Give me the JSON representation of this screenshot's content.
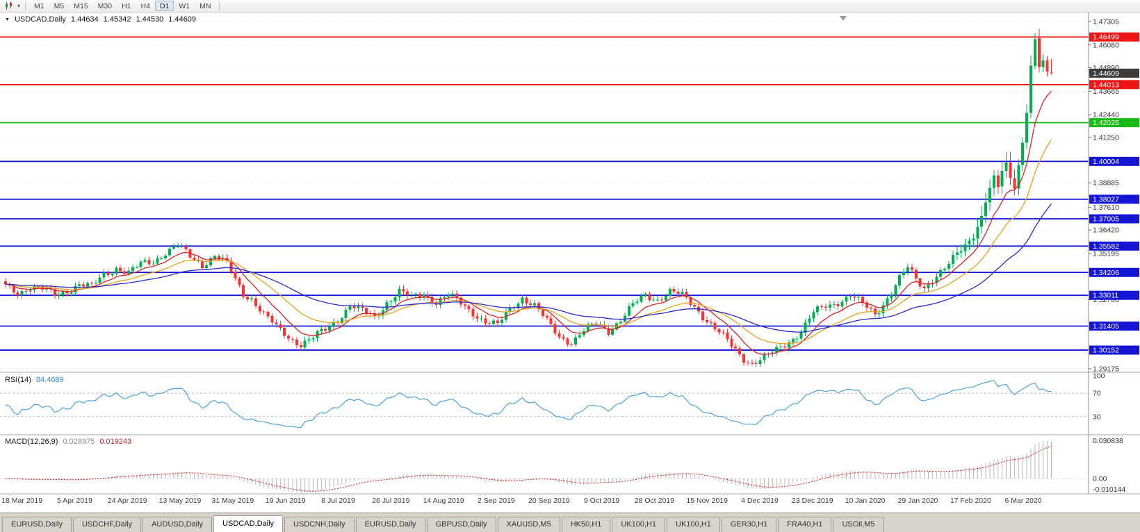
{
  "app": {
    "title": "MetaTrader"
  },
  "toolbar": {
    "timeframes": [
      {
        "label": "M1",
        "active": false
      },
      {
        "label": "M5",
        "active": false
      },
      {
        "label": "M15",
        "active": false
      },
      {
        "label": "M30",
        "active": false
      },
      {
        "label": "H1",
        "active": false
      },
      {
        "label": "H4",
        "active": false
      },
      {
        "label": "D1",
        "active": true
      },
      {
        "label": "W1",
        "active": false
      },
      {
        "label": "MN",
        "active": false
      }
    ]
  },
  "chart_header": {
    "collapse_arrow": "▼",
    "symbol_period": "USDCAD,Daily",
    "open": "1.44634",
    "high": "1.45342",
    "low": "1.44530",
    "close": "1.44609"
  },
  "indicators": {
    "rsi": {
      "title": "RSI(14)",
      "value": "84.4689",
      "levels": [
        70,
        30
      ],
      "axis_labels": [
        {
          "text": "100",
          "value": 100
        },
        {
          "text": "70",
          "value": 70
        },
        {
          "text": "30",
          "value": 30
        }
      ]
    },
    "macd": {
      "title": "MACD(12,26,9)",
      "main_value": "0.028975",
      "signal_value": "0.019243",
      "axis_top": "0.030838",
      "axis_zero": "0.00",
      "axis_bottom": "-0.010144"
    }
  },
  "price_axis": {
    "ticks": [
      "1.47305",
      "1.46080",
      "1.44890",
      "1.43665",
      "1.42440",
      "1.41250",
      "1.40055",
      "1.38885",
      "1.37610",
      "1.36420",
      "1.35195",
      "1.34013",
      "1.32780",
      "1.31596",
      "1.30365",
      "1.29175"
    ]
  },
  "current_price": {
    "value": "1.44609"
  },
  "hlines": [
    {
      "price": 1.46499,
      "label": "1.46499",
      "color": "#ee1515"
    },
    {
      "price": 1.44013,
      "label": "1.44013",
      "color": "#ee1515"
    },
    {
      "price": 1.42025,
      "label": "1.42025",
      "color": "#15bb15"
    },
    {
      "price": 1.40004,
      "label": "1.40004",
      "color": "#1515d6"
    },
    {
      "price": 1.38027,
      "label": "1.38027",
      "color": "#1515d6"
    },
    {
      "price": 1.37005,
      "label": "1.37005",
      "color": "#1515d6"
    },
    {
      "price": 1.35582,
      "label": "1.35582",
      "color": "#1515d6"
    },
    {
      "price": 1.34206,
      "label": "1.34206",
      "color": "#1515d6"
    },
    {
      "price": 1.33011,
      "label": "1.33011",
      "color": "#1515d6"
    },
    {
      "price": 1.31405,
      "label": "1.31405",
      "color": "#1515d6"
    },
    {
      "price": 1.30152,
      "label": "1.30152",
      "color": "#1515d6"
    }
  ],
  "date_axis": {
    "labels": [
      "18 Mar 2019",
      "5 Apr 2019",
      "24 Apr 2019",
      "13 May 2019",
      "31 May 2019",
      "19 Jun 2019",
      "8 Jul 2019",
      "26 Jul 2019",
      "14 Aug 2019",
      "2 Sep 2019",
      "20 Sep 2019",
      "9 Oct 2019",
      "28 Oct 2019",
      "15 Nov 2019",
      "4 Dec 2019",
      "23 Dec 2019",
      "10 Jan 2020",
      "29 Jan 2020",
      "17 Feb 2020",
      "6 Mar 2020"
    ]
  },
  "tabs": [
    {
      "label": "EURUSD,Daily",
      "active": false
    },
    {
      "label": "USDCHF,Daily",
      "active": false
    },
    {
      "label": "AUDUSD,Daily",
      "active": false
    },
    {
      "label": "USDCAD,Daily",
      "active": true
    },
    {
      "label": "USDCNH,Daily",
      "active": false
    },
    {
      "label": "EURUSD,Daily",
      "active": false
    },
    {
      "label": "GBPUSD,Daily",
      "active": false
    },
    {
      "label": "XAUUSD,M5",
      "active": false
    },
    {
      "label": "HK50,H1",
      "active": false
    },
    {
      "label": "UK100,H1",
      "active": false
    },
    {
      "label": "UK100,H1",
      "active": false
    },
    {
      "label": "GER30,H1",
      "active": false
    },
    {
      "label": "FRA40,H1",
      "active": false
    },
    {
      "label": "USOil,M5",
      "active": false
    }
  ],
  "colors": {
    "up_candle": "#00b050",
    "down_candle": "#ff3030",
    "rsi_line": "#4aa3dd",
    "macd_hist": "#b4b4b4",
    "macd_signal": "#e02020",
    "current_price_bg": "#3c3c3c",
    "grid": "#e2e2e2",
    "axis_text": "#333333"
  },
  "chart_data": {
    "type": "candlestick",
    "symbol": "USDCAD",
    "timeframe": "Daily",
    "ohlc_last": {
      "open": 1.44634,
      "high": 1.45342,
      "low": 1.4453,
      "close": 1.44609
    },
    "price_range": [
      1.2899,
      1.4763
    ],
    "n": 256,
    "close_waypoints": [
      [
        0,
        1.3345
      ],
      [
        3,
        1.3315
      ],
      [
        6,
        1.335
      ],
      [
        9,
        1.333
      ],
      [
        12,
        1.33
      ],
      [
        15,
        1.333
      ],
      [
        18,
        1.336
      ],
      [
        21,
        1.334
      ],
      [
        24,
        1.341
      ],
      [
        27,
        1.345
      ],
      [
        30,
        1.3415
      ],
      [
        33,
        1.346
      ],
      [
        36,
        1.348
      ],
      [
        39,
        1.353
      ],
      [
        42,
        1.3555
      ],
      [
        45,
        1.35
      ],
      [
        48,
        1.3465
      ],
      [
        51,
        1.351
      ],
      [
        54,
        1.346
      ],
      [
        56,
        1.338
      ],
      [
        58,
        1.331
      ],
      [
        60,
        1.329
      ],
      [
        63,
        1.32
      ],
      [
        66,
        1.313
      ],
      [
        69,
        1.3085
      ],
      [
        72,
        1.305
      ],
      [
        75,
        1.3075
      ],
      [
        78,
        1.312
      ],
      [
        81,
        1.318
      ],
      [
        84,
        1.325
      ],
      [
        87,
        1.3215
      ],
      [
        90,
        1.3185
      ],
      [
        93,
        1.327
      ],
      [
        96,
        1.332
      ],
      [
        99,
        1.3285
      ],
      [
        102,
        1.331
      ],
      [
        105,
        1.327
      ],
      [
        108,
        1.33
      ],
      [
        111,
        1.3255
      ],
      [
        114,
        1.3215
      ],
      [
        117,
        1.3165
      ],
      [
        120,
        1.314
      ],
      [
        123,
        1.323
      ],
      [
        126,
        1.3295
      ],
      [
        129,
        1.3245
      ],
      [
        132,
        1.316
      ],
      [
        135,
        1.309
      ],
      [
        138,
        1.306
      ],
      [
        141,
        1.311
      ],
      [
        144,
        1.315
      ],
      [
        147,
        1.312
      ],
      [
        150,
        1.3175
      ],
      [
        153,
        1.3245
      ],
      [
        156,
        1.33
      ],
      [
        159,
        1.3285
      ],
      [
        162,
        1.332
      ],
      [
        165,
        1.3295
      ],
      [
        168,
        1.3245
      ],
      [
        171,
        1.3175
      ],
      [
        174,
        1.3105
      ],
      [
        177,
        1.3035
      ],
      [
        180,
        1.2975
      ],
      [
        182,
        1.2952
      ],
      [
        185,
        1.297
      ],
      [
        188,
        1.301
      ],
      [
        191,
        1.3065
      ],
      [
        194,
        1.3115
      ],
      [
        197,
        1.3205
      ],
      [
        200,
        1.3245
      ],
      [
        203,
        1.327
      ],
      [
        206,
        1.33
      ],
      [
        209,
        1.325
      ],
      [
        212,
        1.3205
      ],
      [
        215,
        1.329
      ],
      [
        218,
        1.3385
      ],
      [
        220,
        1.344
      ],
      [
        222,
        1.3385
      ],
      [
        224,
        1.3345
      ],
      [
        226,
        1.339
      ],
      [
        228,
        1.342
      ],
      [
        230,
        1.3455
      ],
      [
        232,
        1.3515
      ],
      [
        234,
        1.3565
      ],
      [
        236,
        1.3625
      ],
      [
        238,
        1.3715
      ],
      [
        240,
        1.386
      ],
      [
        241,
        1.392
      ],
      [
        242,
        1.3865
      ],
      [
        243,
        1.395
      ],
      [
        244,
        1.399
      ],
      [
        245,
        1.3915
      ],
      [
        246,
        1.3865
      ],
      [
        247,
        1.3985
      ],
      [
        248,
        1.41
      ],
      [
        249,
        1.426
      ],
      [
        250,
        1.45
      ],
      [
        251,
        1.4638
      ],
      [
        252,
        1.449
      ],
      [
        253,
        1.4525
      ],
      [
        254,
        1.44634
      ],
      [
        255,
        1.44609
      ]
    ],
    "overrides": {
      "251": [
        1.4498,
        1.4669,
        1.4482,
        1.4638
      ],
      "255": [
        1.44634,
        1.45342,
        1.4453,
        1.44609
      ]
    },
    "moving_averages": [
      {
        "type": "ema",
        "period": 9,
        "color": "#e02020"
      },
      {
        "type": "ema",
        "period": 21,
        "color": "#e8a21c"
      },
      {
        "type": "ema",
        "period": 50,
        "color": "#2828cc"
      }
    ],
    "sub_indicators": [
      {
        "name": "RSI",
        "period": 14,
        "last": 84.4689
      },
      {
        "name": "MACD",
        "fast": 12,
        "slow": 26,
        "signal": 9,
        "last_main": 0.028975,
        "last_signal": 0.019243
      }
    ]
  }
}
